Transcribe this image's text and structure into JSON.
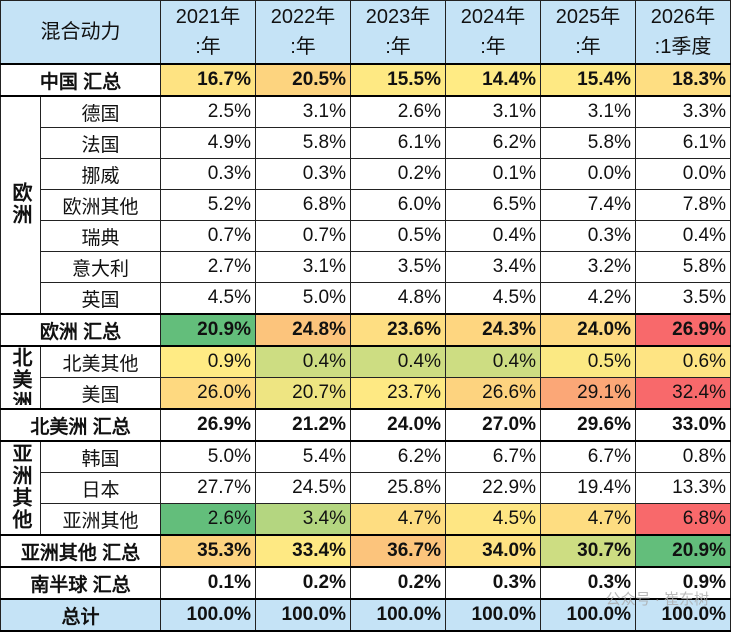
{
  "header": {
    "title": "混合动力",
    "columns": [
      [
        "2021年",
        ":年"
      ],
      [
        "2022年",
        ":年"
      ],
      [
        "2023年",
        ":年"
      ],
      [
        "2024年",
        ":年"
      ],
      [
        "2025年",
        ":年"
      ],
      [
        "2026年",
        ":1季度"
      ]
    ]
  },
  "sections": [
    {
      "label": "中国 汇总",
      "values": [
        "16.7%",
        "20.5%",
        "15.5%",
        "14.4%",
        "15.4%",
        "18.3%"
      ]
    },
    {
      "region": "欧洲",
      "rows": [
        {
          "label": "德国",
          "values": [
            "2.5%",
            "3.1%",
            "2.6%",
            "3.1%",
            "3.1%",
            "3.3%"
          ]
        },
        {
          "label": "法国",
          "values": [
            "4.9%",
            "5.8%",
            "6.1%",
            "6.2%",
            "5.8%",
            "6.1%"
          ]
        },
        {
          "label": "挪威",
          "values": [
            "0.3%",
            "0.3%",
            "0.2%",
            "0.1%",
            "0.0%",
            "0.0%"
          ]
        },
        {
          "label": "欧洲其他",
          "values": [
            "5.2%",
            "6.8%",
            "6.0%",
            "6.5%",
            "7.4%",
            "7.8%"
          ]
        },
        {
          "label": "瑞典",
          "values": [
            "0.7%",
            "0.7%",
            "0.5%",
            "0.4%",
            "0.3%",
            "0.4%"
          ]
        },
        {
          "label": "意大利",
          "values": [
            "2.7%",
            "3.1%",
            "3.5%",
            "3.4%",
            "3.2%",
            "5.8%"
          ]
        },
        {
          "label": "英国",
          "values": [
            "4.5%",
            "5.0%",
            "4.8%",
            "4.5%",
            "4.2%",
            "3.5%"
          ]
        }
      ]
    },
    {
      "label": "欧洲 汇总",
      "values": [
        "20.9%",
        "24.8%",
        "23.6%",
        "24.3%",
        "24.0%",
        "26.9%"
      ]
    },
    {
      "region": "北美洲",
      "rows": [
        {
          "label": "北美其他",
          "values": [
            "0.9%",
            "0.4%",
            "0.4%",
            "0.4%",
            "0.5%",
            "0.6%"
          ]
        },
        {
          "label": "美国",
          "values": [
            "26.0%",
            "20.7%",
            "23.7%",
            "26.6%",
            "29.1%",
            "32.4%"
          ]
        }
      ]
    },
    {
      "label": "北美洲 汇总",
      "values": [
        "26.9%",
        "21.2%",
        "24.0%",
        "27.0%",
        "29.6%",
        "33.0%"
      ]
    },
    {
      "region": "亚洲其他",
      "rows": [
        {
          "label": "韩国",
          "values": [
            "5.0%",
            "5.4%",
            "6.2%",
            "6.7%",
            "6.7%",
            "0.8%"
          ]
        },
        {
          "label": "日本",
          "values": [
            "27.7%",
            "24.5%",
            "25.8%",
            "22.9%",
            "19.4%",
            "13.3%"
          ]
        },
        {
          "label": "亚洲其他",
          "values": [
            "2.6%",
            "3.4%",
            "4.7%",
            "4.5%",
            "4.7%",
            "6.8%"
          ]
        }
      ]
    },
    {
      "label": "亚洲其他 汇总",
      "values": [
        "35.3%",
        "33.4%",
        "36.7%",
        "34.0%",
        "30.7%",
        "20.9%"
      ]
    },
    {
      "label": "南半球 汇总",
      "values": [
        "0.1%",
        "0.2%",
        "0.2%",
        "0.3%",
        "0.3%",
        "0.9%"
      ]
    },
    {
      "label": "总计",
      "values": [
        "100.0%",
        "100.0%",
        "100.0%",
        "100.0%",
        "100.0%",
        "100.0%"
      ]
    }
  ],
  "watermark": "公众号 · 崔东树"
}
